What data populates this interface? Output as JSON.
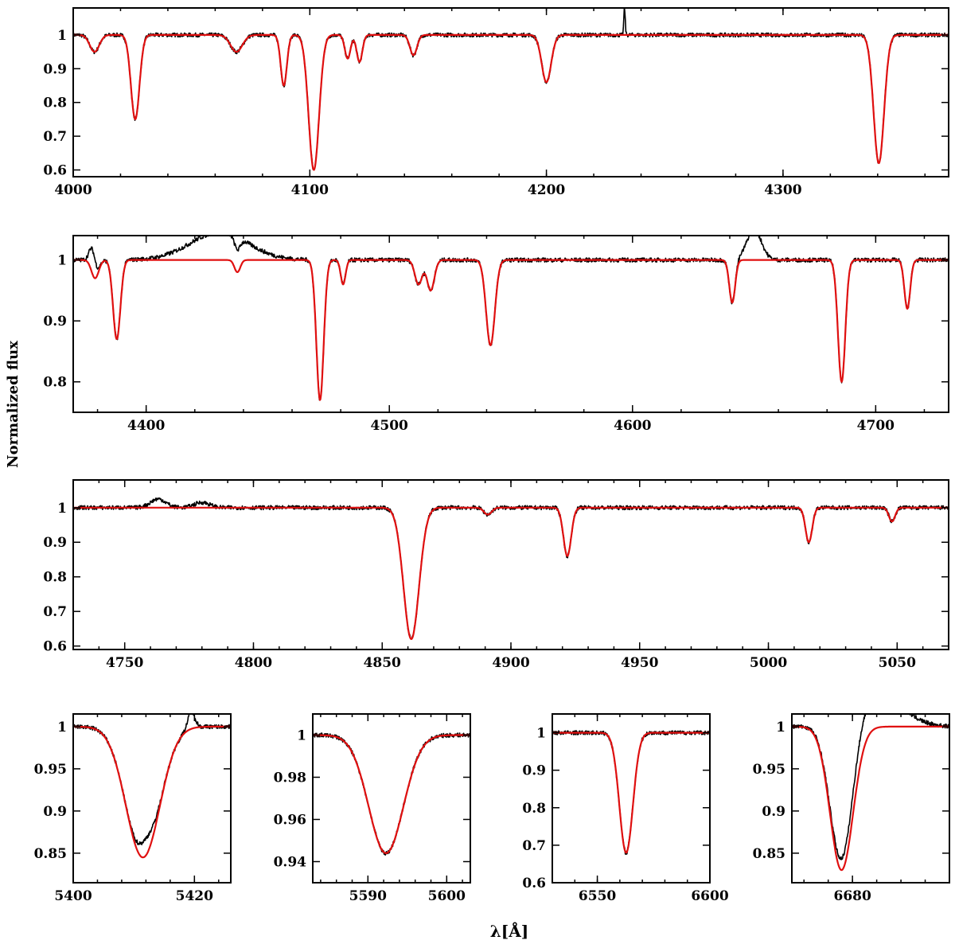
{
  "figure": {
    "ylabel": "Normalized flux",
    "xlabel": "λ[Å]"
  },
  "colors": {
    "observed": "#000000",
    "model": "#e01010",
    "frame": "#000000"
  },
  "chart_data": [
    {
      "type": "line",
      "name": "panel-1",
      "xlim": [
        4000,
        4370
      ],
      "ylim": [
        0.58,
        1.08
      ],
      "xticks": [
        4000,
        4100,
        4200,
        4300
      ],
      "yticks": [
        0.6,
        0.7,
        0.8,
        0.9,
        1
      ],
      "xtick_labels": [
        "4000",
        "4100",
        "4200",
        "4300"
      ],
      "ytick_labels": [
        "0.6",
        "0.7",
        "0.8",
        "0.9",
        "1"
      ],
      "lines": [
        {
          "center": 4009,
          "depth": 0.05,
          "width": 2.0
        },
        {
          "center": 4026.2,
          "depth": 0.25,
          "width": 1.8
        },
        {
          "center": 4069,
          "depth": 0.05,
          "width": 2.5
        },
        {
          "center": 4089,
          "depth": 0.15,
          "width": 1.3
        },
        {
          "center": 4101.7,
          "depth": 0.4,
          "width": 2.2
        },
        {
          "center": 4116,
          "depth": 0.07,
          "width": 1.2
        },
        {
          "center": 4121,
          "depth": 0.08,
          "width": 1.2
        },
        {
          "center": 4143.8,
          "depth": 0.06,
          "width": 1.5
        },
        {
          "center": 4200,
          "depth": 0.14,
          "width": 2.0
        },
        {
          "center": 4340.5,
          "depth": 0.38,
          "width": 2.2
        }
      ],
      "extra": [
        {
          "center": 4233,
          "depth": 0.08,
          "width": 0.3
        }
      ]
    },
    {
      "type": "line",
      "name": "panel-2",
      "xlim": [
        4370,
        4730
      ],
      "ylim": [
        0.75,
        1.04
      ],
      "xticks": [
        4400,
        4500,
        4600,
        4700
      ],
      "yticks": [
        0.8,
        0.9,
        1
      ],
      "xtick_labels": [
        "4400",
        "4500",
        "4600",
        "4700"
      ],
      "ytick_labels": [
        "0.8",
        "0.9",
        "1"
      ],
      "lines": [
        {
          "center": 4379,
          "depth": 0.03,
          "width": 1.5
        },
        {
          "center": 4387.9,
          "depth": 0.13,
          "width": 1.5
        },
        {
          "center": 4437.5,
          "depth": 0.02,
          "width": 1.2
        },
        {
          "center": 4471.5,
          "depth": 0.23,
          "width": 1.5
        },
        {
          "center": 4481,
          "depth": 0.04,
          "width": 1.0
        },
        {
          "center": 4512,
          "depth": 0.04,
          "width": 1.5
        },
        {
          "center": 4517,
          "depth": 0.05,
          "width": 1.5
        },
        {
          "center": 4541.6,
          "depth": 0.14,
          "width": 1.8
        },
        {
          "center": 4641,
          "depth": 0.07,
          "width": 1.2
        },
        {
          "center": 4686,
          "depth": 0.2,
          "width": 1.5
        },
        {
          "center": 4713,
          "depth": 0.08,
          "width": 1.2
        }
      ],
      "extra": [
        {
          "center": 4430,
          "depth": 0.045,
          "width": 12
        },
        {
          "center": 4378,
          "depth": 0.04,
          "width": 1.3
        },
        {
          "center": 4650,
          "depth": 0.05,
          "width": 3
        }
      ]
    },
    {
      "type": "line",
      "name": "panel-3",
      "xlim": [
        4730,
        5070
      ],
      "ylim": [
        0.59,
        1.08
      ],
      "xticks": [
        4750,
        4800,
        4850,
        4900,
        4950,
        5000,
        5050
      ],
      "yticks": [
        0.6,
        0.7,
        0.8,
        0.9,
        1
      ],
      "xtick_labels": [
        "4750",
        "4800",
        "4850",
        "4900",
        "4950",
        "5000",
        "5050"
      ],
      "ytick_labels": [
        "0.6",
        "0.7",
        "0.8",
        "0.9",
        "1"
      ],
      "lines": [
        {
          "center": 4861.3,
          "depth": 0.38,
          "width": 3.0
        },
        {
          "center": 4891,
          "depth": 0.02,
          "width": 1.5
        },
        {
          "center": 4921.9,
          "depth": 0.14,
          "width": 1.5
        },
        {
          "center": 5015.7,
          "depth": 0.1,
          "width": 1.3
        },
        {
          "center": 5048,
          "depth": 0.04,
          "width": 1.2
        }
      ],
      "extra": [
        {
          "center": 4763,
          "depth": 0.025,
          "width": 3
        },
        {
          "center": 4780,
          "depth": 0.015,
          "width": 3
        }
      ]
    },
    {
      "type": "line",
      "name": "panel-4",
      "xlim": [
        5400,
        5426
      ],
      "ylim": [
        0.815,
        1.015
      ],
      "xticks": [
        5400,
        5420
      ],
      "yticks": [
        0.85,
        0.9,
        0.95,
        1
      ],
      "xtick_labels": [
        "5400",
        "5420"
      ],
      "ytick_labels": [
        "0.85",
        "0.9",
        "0.95",
        "1"
      ],
      "lines": [
        {
          "center": 5411.5,
          "depth": 0.155,
          "width": 2.8
        }
      ],
      "extra": [
        {
          "center": 5412,
          "depth": 0.02,
          "width": 1.2
        },
        {
          "center": 5419.5,
          "depth": 0.02,
          "width": 0.6
        }
      ]
    },
    {
      "type": "line",
      "name": "panel-5",
      "xlim": [
        5583,
        5603
      ],
      "ylim": [
        0.93,
        1.01
      ],
      "xticks": [
        5590,
        5600
      ],
      "yticks": [
        0.94,
        0.96,
        0.98,
        1
      ],
      "xtick_labels": [
        "5590",
        "5600"
      ],
      "ytick_labels": [
        "0.94",
        "0.96",
        "0.98",
        "1"
      ],
      "lines": [
        {
          "center": 5592.3,
          "depth": 0.056,
          "width": 2.2
        }
      ],
      "extra": []
    },
    {
      "type": "line",
      "name": "panel-6",
      "xlim": [
        6530,
        6600
      ],
      "ylim": [
        0.6,
        1.05
      ],
      "xticks": [
        6550,
        6600
      ],
      "yticks": [
        0.6,
        0.7,
        0.8,
        0.9,
        1
      ],
      "xtick_labels": [
        "6550",
        "6600"
      ],
      "ytick_labels": [
        "0.6",
        "0.7",
        "0.8",
        "0.9",
        "1"
      ],
      "lines": [
        {
          "center": 6562.8,
          "depth": 0.32,
          "width": 3.0
        }
      ],
      "extra": []
    },
    {
      "type": "line",
      "name": "panel-7",
      "xlim": [
        6670,
        6696
      ],
      "ylim": [
        0.815,
        1.015
      ],
      "xticks": [
        6680
      ],
      "yticks": [
        0.85,
        0.9,
        0.95,
        1
      ],
      "xtick_labels": [
        "6680"
      ],
      "ytick_labels": [
        "0.85",
        "0.9",
        "0.95",
        "1"
      ],
      "lines": [
        {
          "center": 6678.2,
          "depth": 0.17,
          "width": 1.9
        }
      ],
      "extra": [
        {
          "center": 6684,
          "depth": 0.04,
          "width": 4
        }
      ]
    }
  ]
}
